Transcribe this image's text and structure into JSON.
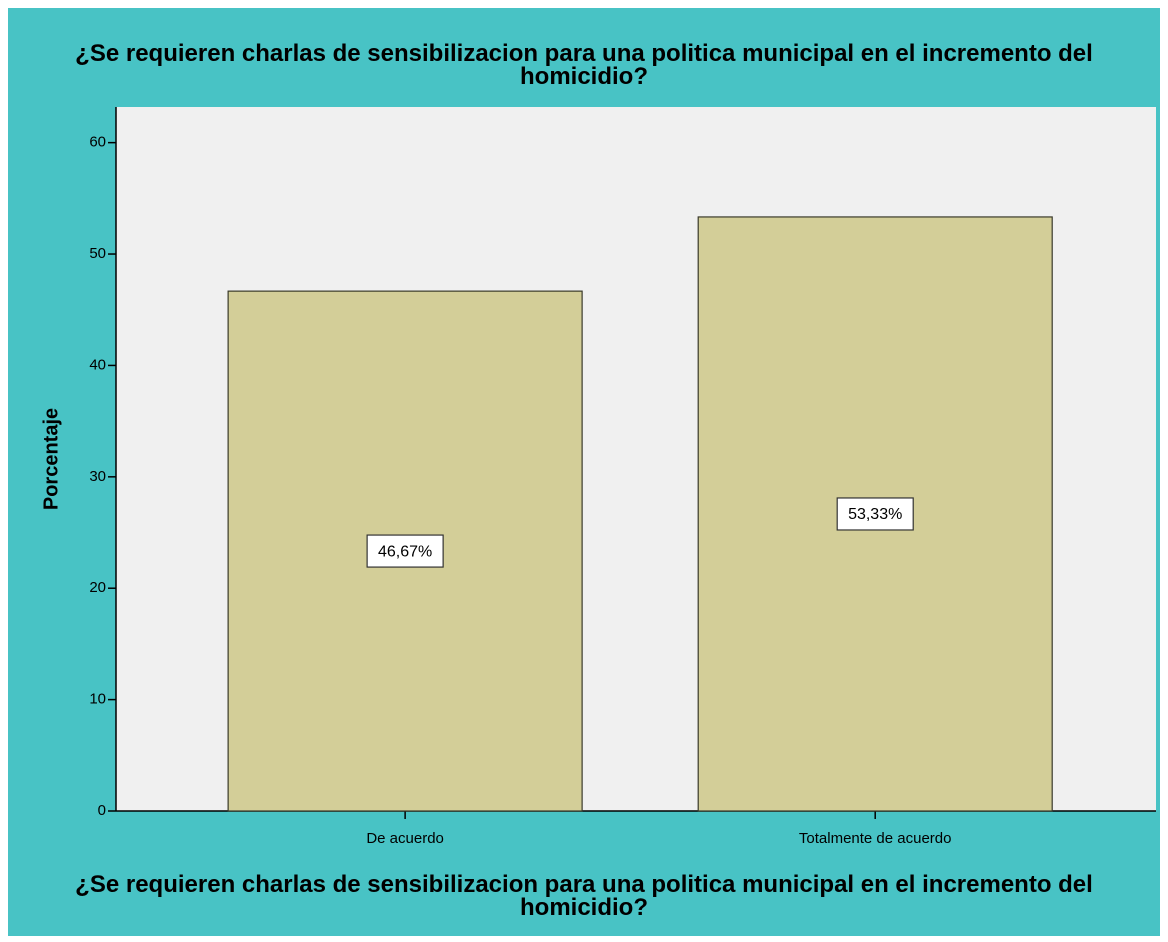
{
  "chart_data": {
    "type": "bar",
    "title": "¿Se requieren charlas de sensibilizacion para una politica municipal en el incremento del homicidio?",
    "x_label": "¿Se requieren charlas de sensibilizacion para una politica municipal en el incremento del homicidio?",
    "y_label": "Porcentaje",
    "categories": [
      "De acuerdo",
      "Totalmente de acuerdo"
    ],
    "values": [
      46.67,
      53.33
    ],
    "value_labels": [
      "46,67%",
      "53,33%"
    ],
    "color": "#d3ce98",
    "ylim": [
      0,
      63.2
    ],
    "yticks": [
      0,
      10,
      20,
      30,
      40,
      50,
      60
    ],
    "grid": false
  }
}
